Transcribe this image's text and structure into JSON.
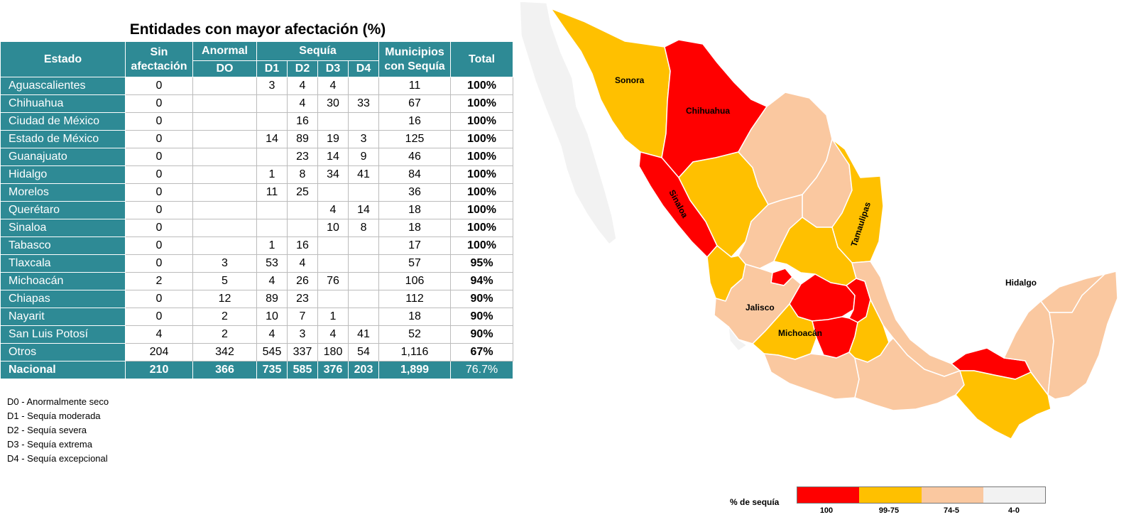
{
  "table": {
    "title": "Entidades con mayor afectación (%)",
    "headers": {
      "estado": "Estado",
      "sin_afectacion": "Sin afectación",
      "anormal": "Anormal",
      "do": "DO",
      "sequia": "Sequía",
      "d1": "D1",
      "d2": "D2",
      "d3": "D3",
      "d4": "D4",
      "municipios": "Municipios con Sequía",
      "total": "Total"
    },
    "rows": [
      {
        "estado": "Aguascalientes",
        "sin": "0",
        "do": "",
        "d1": "3",
        "d2": "4",
        "d3": "4",
        "d4": "",
        "mun": "11",
        "total": "100%"
      },
      {
        "estado": "Chihuahua",
        "sin": "0",
        "do": "",
        "d1": "",
        "d2": "4",
        "d3": "30",
        "d4": "33",
        "mun": "67",
        "total": "100%"
      },
      {
        "estado": "Ciudad de México",
        "sin": "0",
        "do": "",
        "d1": "",
        "d2": "16",
        "d3": "",
        "d4": "",
        "mun": "16",
        "total": "100%"
      },
      {
        "estado": "Estado de México",
        "sin": "0",
        "do": "",
        "d1": "14",
        "d2": "89",
        "d3": "19",
        "d4": "3",
        "mun": "125",
        "total": "100%"
      },
      {
        "estado": "Guanajuato",
        "sin": "0",
        "do": "",
        "d1": "",
        "d2": "23",
        "d3": "14",
        "d4": "9",
        "mun": "46",
        "total": "100%"
      },
      {
        "estado": "Hidalgo",
        "sin": "0",
        "do": "",
        "d1": "1",
        "d2": "8",
        "d3": "34",
        "d4": "41",
        "mun": "84",
        "total": "100%"
      },
      {
        "estado": "Morelos",
        "sin": "0",
        "do": "",
        "d1": "11",
        "d2": "25",
        "d3": "",
        "d4": "",
        "mun": "36",
        "total": "100%"
      },
      {
        "estado": "Querétaro",
        "sin": "0",
        "do": "",
        "d1": "",
        "d2": "",
        "d3": "4",
        "d4": "14",
        "mun": "18",
        "total": "100%"
      },
      {
        "estado": "Sinaloa",
        "sin": "0",
        "do": "",
        "d1": "",
        "d2": "",
        "d3": "10",
        "d4": "8",
        "mun": "18",
        "total": "100%"
      },
      {
        "estado": "Tabasco",
        "sin": "0",
        "do": "",
        "d1": "1",
        "d2": "16",
        "d3": "",
        "d4": "",
        "mun": "17",
        "total": "100%"
      },
      {
        "estado": "Tlaxcala",
        "sin": "0",
        "do": "3",
        "d1": "53",
        "d2": "4",
        "d3": "",
        "d4": "",
        "mun": "57",
        "total": "95%"
      },
      {
        "estado": "Michoacán",
        "sin": "2",
        "do": "5",
        "d1": "4",
        "d2": "26",
        "d3": "76",
        "d4": "",
        "mun": "106",
        "total": "94%"
      },
      {
        "estado": "Chiapas",
        "sin": "0",
        "do": "12",
        "d1": "89",
        "d2": "23",
        "d3": "",
        "d4": "",
        "mun": "112",
        "total": "90%"
      },
      {
        "estado": "Nayarit",
        "sin": "0",
        "do": "2",
        "d1": "10",
        "d2": "7",
        "d3": "1",
        "d4": "",
        "mun": "18",
        "total": "90%"
      },
      {
        "estado": "San Luis Potosí",
        "sin": "4",
        "do": "2",
        "d1": "4",
        "d2": "3",
        "d3": "4",
        "d4": "41",
        "mun": "52",
        "total": "90%"
      },
      {
        "estado": "Otros",
        "sin": "204",
        "do": "342",
        "d1": "545",
        "d2": "337",
        "d3": "180",
        "d4": "54",
        "mun": "1,116",
        "total": "67%"
      }
    ],
    "nacional": {
      "estado": "Nacional",
      "sin": "210",
      "do": "366",
      "d1": "735",
      "d2": "585",
      "d3": "376",
      "d4": "203",
      "mun": "1,899",
      "total": "76.7%"
    }
  },
  "legend_list": [
    "D0 - Anormalmente seco",
    "D1 - Sequía moderada",
    "D2 - Sequía severa",
    "D3 - Sequía extrema",
    "D4 - Sequía excepcional"
  ],
  "map": {
    "labels": {
      "sonora": "Sonora",
      "chihuahua": "Chihuahua",
      "sinaloa": "Sinaloa",
      "tamaulipas": "Tamaulipas",
      "jalisco": "Jalisco",
      "michoacan": "Michoacán",
      "hidalgo": "Hidalgo"
    },
    "colors": {
      "c100": "#ff0000",
      "c99_75": "#ffc000",
      "c74_5": "#fac8a0",
      "c4_0": "#f2f2f2"
    },
    "scale": {
      "title": "% de sequía",
      "labels": [
        "100",
        "99-75",
        "74-5",
        "4-0"
      ]
    }
  }
}
